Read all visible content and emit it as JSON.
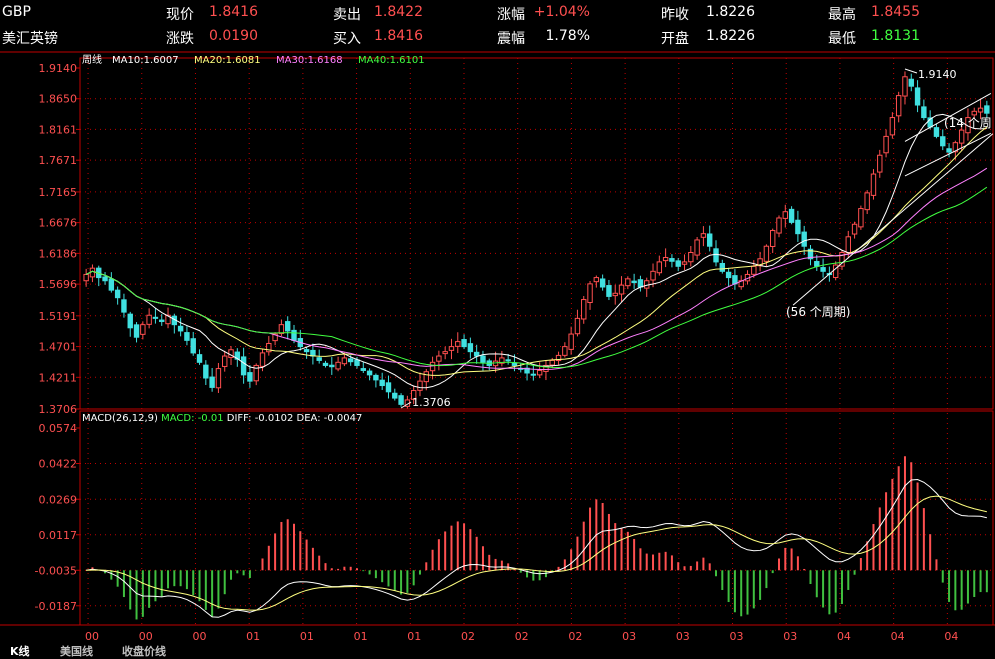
{
  "quote": {
    "symbol": "GBP",
    "name": "美汇英镑",
    "fields": [
      {
        "label": "现价",
        "value": "1.8416",
        "color": "#ff5050"
      },
      {
        "label": "卖出",
        "value": "1.8422",
        "color": "#ff5050"
      },
      {
        "label": "涨幅",
        "value": "+1.04%",
        "color": "#ff5050"
      },
      {
        "label": "昨收",
        "value": "1.8226",
        "color": "#ffffff"
      },
      {
        "label": "最高",
        "value": "1.8455",
        "color": "#ff5050"
      },
      {
        "label": "涨跌",
        "value": "0.0190",
        "color": "#ff5050"
      },
      {
        "label": "买入",
        "value": "1.8416",
        "color": "#ff5050"
      },
      {
        "label": "震幅",
        "value": "1.78%",
        "color": "#ffffff"
      },
      {
        "label": "开盘",
        "value": "1.8226",
        "color": "#ffffff"
      },
      {
        "label": "最低",
        "value": "1.8131",
        "color": "#40ff40"
      }
    ]
  },
  "tabs": [
    {
      "label": "K线",
      "active": true
    },
    {
      "label": "美国线",
      "active": false
    },
    {
      "label": "收盘价线",
      "active": false
    }
  ],
  "chart_data": [
    {
      "type": "candlestick",
      "period": "周线",
      "ylim": [
        1.3706,
        1.914
      ],
      "y_ticks": [
        "1.9140",
        "1.8650",
        "1.8161",
        "1.7671",
        "1.7165",
        "1.6676",
        "1.6186",
        "1.5696",
        "1.5191",
        "1.4701",
        "1.4211",
        "1.3706"
      ],
      "x_ticks": [
        "00",
        "00",
        "00",
        "01",
        "01",
        "01",
        "01",
        "02",
        "02",
        "02",
        "03",
        "03",
        "03",
        "03",
        "04",
        "04",
        "04"
      ],
      "moving_averages": [
        {
          "name": "MA10",
          "value": "1.6007",
          "color": "#ffffff"
        },
        {
          "name": "MA20",
          "value": "1.6081",
          "color": "#ffff80"
        },
        {
          "name": "MA30",
          "value": "1.6168",
          "color": "#ff80ff"
        },
        {
          "name": "MA40",
          "value": "1.6101",
          "color": "#40ff40"
        }
      ],
      "annotations": [
        {
          "text": "1.9140",
          "kind": "high"
        },
        {
          "text": "1.3706",
          "kind": "low"
        },
        {
          "text": "(56 个周期)",
          "kind": "channel"
        },
        {
          "text": "(14 个周",
          "kind": "channel"
        }
      ],
      "colors": {
        "up": "#ff5050",
        "down": "#40e0e0"
      },
      "closes": [
        1.585,
        1.595,
        1.58,
        1.575,
        1.56,
        1.548,
        1.525,
        1.5,
        1.485,
        1.505,
        1.52,
        1.515,
        1.51,
        1.52,
        1.505,
        1.495,
        1.48,
        1.46,
        1.445,
        1.42,
        1.405,
        1.435,
        1.455,
        1.465,
        1.45,
        1.425,
        1.415,
        1.44,
        1.46,
        1.475,
        1.49,
        1.505,
        1.495,
        1.48,
        1.47,
        1.462,
        1.455,
        1.448,
        1.44,
        1.438,
        1.445,
        1.452,
        1.446,
        1.44,
        1.432,
        1.425,
        1.417,
        1.408,
        1.398,
        1.388,
        1.378,
        1.385,
        1.4,
        1.415,
        1.43,
        1.445,
        1.455,
        1.462,
        1.47,
        1.478,
        1.47,
        1.462,
        1.455,
        1.445,
        1.44,
        1.447,
        1.452,
        1.448,
        1.44,
        1.434,
        1.428,
        1.426,
        1.432,
        1.44,
        1.448,
        1.456,
        1.47,
        1.49,
        1.515,
        1.545,
        1.57,
        1.58,
        1.565,
        1.55,
        1.555,
        1.568,
        1.578,
        1.572,
        1.565,
        1.575,
        1.59,
        1.605,
        1.612,
        1.606,
        1.598,
        1.605,
        1.62,
        1.64,
        1.65,
        1.63,
        1.605,
        1.59,
        1.58,
        1.57,
        1.575,
        1.585,
        1.598,
        1.61,
        1.63,
        1.655,
        1.675,
        1.685,
        1.668,
        1.65,
        1.63,
        1.61,
        1.598,
        1.59,
        1.585,
        1.6,
        1.62,
        1.645,
        1.665,
        1.69,
        1.715,
        1.745,
        1.775,
        1.805,
        1.835,
        1.87,
        1.9,
        1.885,
        1.855,
        1.835,
        1.82,
        1.805,
        1.79,
        1.78,
        1.795,
        1.815,
        1.835,
        1.845,
        1.85,
        1.842
      ]
    },
    {
      "type": "macd",
      "label": "MACD(26,12,9)",
      "series": [
        {
          "name": "MACD",
          "value": "-0.01"
        },
        {
          "name": "DIFF",
          "value": "-0.0102"
        },
        {
          "name": "DEA",
          "value": "-0.0047"
        }
      ],
      "ylim": [
        -0.0265,
        0.0574
      ],
      "y_ticks": [
        "0.0574",
        "0.0422",
        "0.0269",
        "0.0117",
        "-0.0035",
        "-0.0187"
      ],
      "colors": {
        "diff": "#ffffff",
        "dea": "#ffff80",
        "pos": "#ff5050",
        "neg": "#40c040"
      }
    }
  ]
}
